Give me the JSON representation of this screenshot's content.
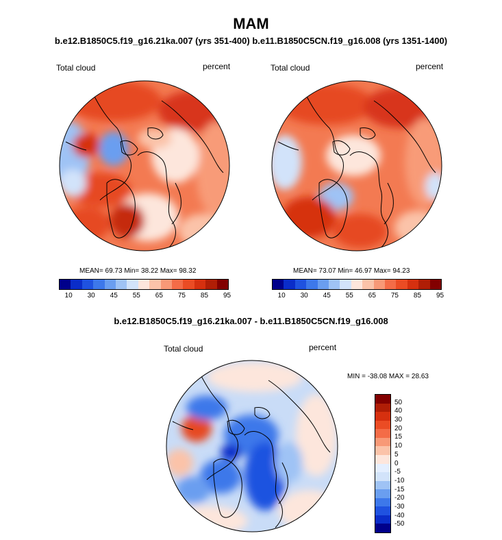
{
  "title": "MAM",
  "subtitle_left": "b.e12.B1850C5.f19_g16.21ka.007 (yrs 351-400)",
  "subtitle_right": "b.e11.B1850C5CN.f19_g16.008 (yrs 1351-1400)",
  "diff_title": "b.e12.B1850C5.f19_g16.21ka.007 - b.e11.B1850C5CN.f19_g16.008",
  "panels": [
    {
      "variable": "Total cloud",
      "units": "percent",
      "stats": "MEAN=  69.73  Min=  38.22  Max=  98.32"
    },
    {
      "variable": "Total cloud",
      "units": "percent",
      "stats": "MEAN=  73.07  Min=  46.97  Max=  94.23"
    },
    {
      "variable": "Total cloud",
      "units": "percent",
      "stats": "MIN = -38.08 MAX =  28.63"
    }
  ],
  "abs_colorbar": {
    "colors": [
      "#00008b",
      "#0a2dc9",
      "#1f52e0",
      "#3d78ea",
      "#6a9ef0",
      "#9fc3f5",
      "#d2e3fa",
      "#fde6dc",
      "#fbc3a9",
      "#f89977",
      "#f46c47",
      "#eb4c24",
      "#d6300f",
      "#b01e06",
      "#820000"
    ],
    "ticks": [
      "10",
      "30",
      "45",
      "55",
      "65",
      "75",
      "85",
      "95"
    ]
  },
  "diff_colorbar": {
    "colors": [
      "#820000",
      "#b01e06",
      "#d6300f",
      "#eb4c24",
      "#f46c47",
      "#f89977",
      "#fbc3a9",
      "#fde6dc",
      "#e4efff",
      "#d2e3fa",
      "#9fc3f5",
      "#6a9ef0",
      "#3d78ea",
      "#1f52e0",
      "#0a2dc9",
      "#00008b"
    ],
    "ticks": [
      "50",
      "40",
      "30",
      "20",
      "15",
      "10",
      "5",
      "0",
      "-5",
      "-10",
      "-15",
      "-20",
      "-30",
      "-40",
      "-50"
    ]
  },
  "map_colors": {
    "ocean_base": "#f37a52",
    "diff_base": "#c9dcf7"
  }
}
